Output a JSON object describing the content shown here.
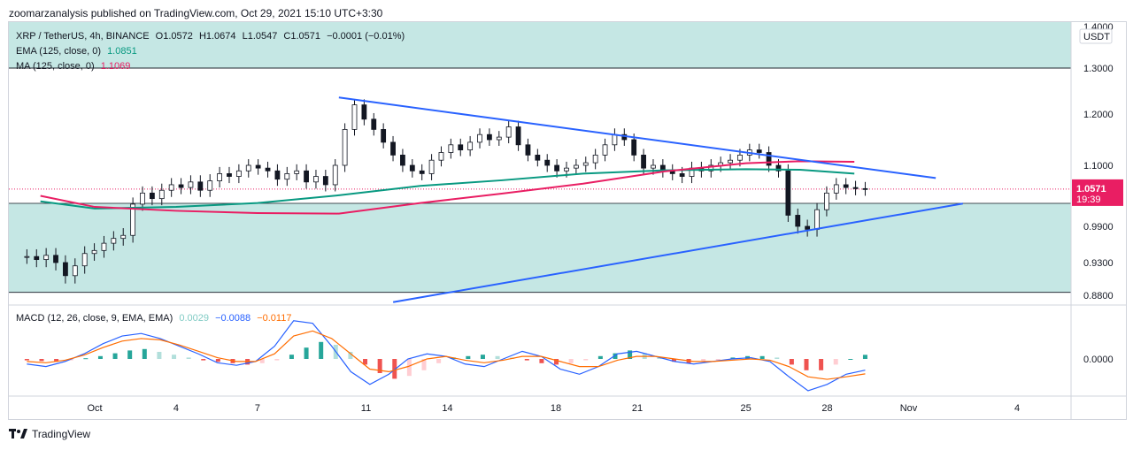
{
  "header": {
    "publisher": "zoomarzanalysis published on TradingView.com, Oct 29, 2021 15:10 UTC+3:30"
  },
  "legend": {
    "symbol": "XRP / TetherUS, 4h, BINANCE",
    "o": "O1.0572",
    "h": "H1.0674",
    "l": "L1.0547",
    "c": "C1.0571",
    "change": "−0.0001 (−0.01%)",
    "ema_label": "EMA (125, close, 0)",
    "ema_value": "1.0851",
    "ma_label": "MA (125, close, 0)",
    "ma_value": "1.1069"
  },
  "macd_legend": {
    "label": "MACD (12, 26, close, 9, EMA, EMA)",
    "hist": "0.0029",
    "macd": "−0.0088",
    "signal": "−0.0117"
  },
  "price_axis": {
    "currency": "USDT",
    "last_price": "1.0571",
    "countdown": "19:39"
  },
  "footer": {
    "brand": "TradingView"
  },
  "colors": {
    "ema": "#089981",
    "ma": "#e91e63",
    "trend": "#2962ff",
    "zone": "#b2dfdb",
    "up": "#26a69a",
    "down": "#ef5350",
    "macd": "#2962ff",
    "signal": "#ff6d00"
  },
  "chart_data": [
    {
      "type": "candlestick",
      "x_ticks": [
        "Oct",
        "4",
        "7",
        "11",
        "14",
        "18",
        "21",
        "25",
        "28",
        "Nov",
        "4"
      ],
      "y_ticks": [
        "1.4000",
        "1.3000",
        "1.2000",
        "1.1000",
        "0.9900",
        "0.9300",
        "0.8800"
      ],
      "zones": [
        {
          "from": 1.3,
          "to": 1.42
        },
        {
          "from": 0.8845,
          "to": 1.0315
        }
      ],
      "trendlines": [
        {
          "name": "upper",
          "from": [
            "Oct 10",
            1.236
          ],
          "to": [
            "Nov 2",
            1.077
          ]
        },
        {
          "name": "lower",
          "from": [
            "Oct 12",
            0.8695
          ],
          "to": [
            "Nov 3",
            1.031
          ]
        }
      ],
      "series": [
        {
          "name": "EMA (125, close, 0)",
          "x": [
            "Sep 29",
            "Oct 1",
            "Oct 4",
            "Oct 7",
            "Oct 10",
            "Oct 13",
            "Oct 16",
            "Oct 19",
            "Oct 22",
            "Oct 25",
            "Oct 27",
            "Oct 29"
          ],
          "values": [
            1.035,
            1.022,
            1.025,
            1.032,
            1.046,
            1.063,
            1.073,
            1.085,
            1.091,
            1.093,
            1.092,
            1.085
          ]
        },
        {
          "name": "MA (125, close, 0)",
          "x": [
            "Sep 29",
            "Oct 1",
            "Oct 4",
            "Oct 7",
            "Oct 10",
            "Oct 13",
            "Oct 16",
            "Oct 19",
            "Oct 22",
            "Oct 25",
            "Oct 27",
            "Oct 29"
          ],
          "values": [
            1.045,
            1.025,
            1.018,
            1.014,
            1.013,
            1.032,
            1.049,
            1.067,
            1.089,
            1.104,
            1.108,
            1.107
          ]
        }
      ],
      "last": {
        "open": 1.0572,
        "high": 1.0674,
        "low": 1.0547,
        "close": 1.0571
      },
      "closes": [
        0.94,
        0.935,
        0.942,
        0.93,
        0.91,
        0.925,
        0.945,
        0.95,
        0.962,
        0.97,
        0.975,
        1.03,
        1.05,
        1.04,
        1.055,
        1.065,
        1.06,
        1.07,
        1.055,
        1.072,
        1.085,
        1.08,
        1.09,
        1.1,
        1.095,
        1.09,
        1.075,
        1.085,
        1.09,
        1.07,
        1.08,
        1.065,
        1.1,
        1.17,
        1.22,
        1.19,
        1.17,
        1.145,
        1.12,
        1.1,
        1.09,
        1.085,
        1.11,
        1.125,
        1.14,
        1.13,
        1.145,
        1.16,
        1.15,
        1.155,
        1.175,
        1.14,
        1.12,
        1.11,
        1.1,
        1.09,
        1.095,
        1.1,
        1.105,
        1.12,
        1.14,
        1.16,
        1.15,
        1.12,
        1.095,
        1.1,
        1.09,
        1.085,
        1.08,
        1.095,
        1.09,
        1.1,
        1.105,
        1.11,
        1.12,
        1.13,
        1.125,
        1.1,
        1.09,
        1.01,
        0.99,
        0.985,
        1.02,
        1.05,
        1.065,
        1.06,
        1.058,
        1.0571
      ]
    },
    {
      "type": "histogram+line",
      "name": "MACD (12, 26, close, 9, EMA, EMA)",
      "y_ticks": [
        "0.0000"
      ],
      "histogram": [
        -0.001,
        -0.0015,
        -0.002,
        -0.001,
        0.0005,
        0.002,
        0.004,
        0.006,
        0.007,
        0.005,
        0.003,
        0.001,
        -0.001,
        -0.002,
        -0.003,
        -0.004,
        -0.003,
        -0.001,
        0.003,
        0.008,
        0.012,
        0.01,
        0.005,
        -0.004,
        -0.01,
        -0.014,
        -0.012,
        -0.008,
        -0.003,
        0.001,
        0.002,
        0.003,
        0.002,
        0.001,
        -0.001,
        -0.003,
        -0.004,
        -0.003,
        -0.001,
        0.002,
        0.004,
        0.006,
        0.004,
        0.001,
        -0.002,
        -0.003,
        -0.002,
        -0.001,
        0.001,
        0.002,
        0.002,
        0.001,
        -0.004,
        -0.008,
        -0.008,
        -0.004,
        0.0,
        0.0029
      ],
      "macd_line": [
        -0.004,
        -0.006,
        -0.002,
        0.004,
        0.012,
        0.018,
        0.02,
        0.016,
        0.01,
        0.004,
        -0.003,
        -0.005,
        -0.002,
        0.01,
        0.03,
        0.028,
        0.01,
        -0.01,
        -0.02,
        -0.012,
        0.0,
        0.004,
        0.002,
        -0.004,
        -0.006,
        0.0,
        0.006,
        0.002,
        -0.008,
        -0.012,
        -0.006,
        0.004,
        0.006,
        0.002,
        -0.002,
        -0.004,
        -0.002,
        0.0,
        0.001,
        -0.002,
        -0.014,
        -0.025,
        -0.02,
        -0.012,
        -0.0088
      ],
      "signal_line": [
        -0.002,
        -0.003,
        -0.001,
        0.003,
        0.009,
        0.014,
        0.016,
        0.015,
        0.011,
        0.006,
        0.001,
        -0.002,
        -0.002,
        0.004,
        0.018,
        0.022,
        0.016,
        0.004,
        -0.008,
        -0.01,
        -0.006,
        0.0,
        0.002,
        -0.001,
        -0.003,
        -0.001,
        0.002,
        0.002,
        -0.002,
        -0.006,
        -0.006,
        -0.001,
        0.002,
        0.002,
        0.0,
        -0.002,
        -0.002,
        -0.001,
        0.0,
        -0.001,
        -0.006,
        -0.014,
        -0.016,
        -0.014,
        -0.0117
      ]
    }
  ]
}
